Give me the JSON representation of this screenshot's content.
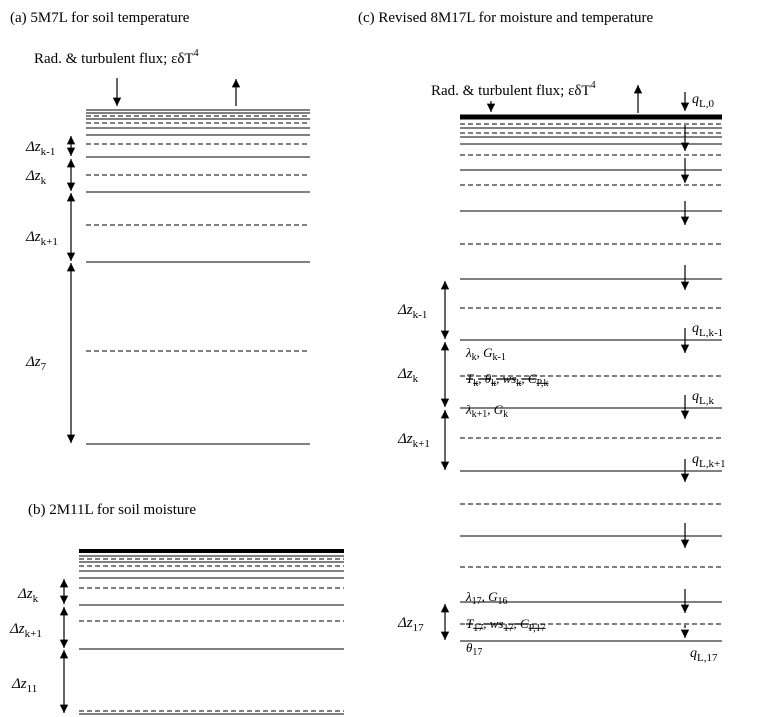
{
  "panels": {
    "a": {
      "title": "(a) 5M7L for soil temperature",
      "flux": "Rad. & turbulent flux; εδT",
      "flux_sup": "4"
    },
    "b": {
      "title": "(b) 2M11L for soil moisture"
    },
    "c": {
      "title": "(c) Revised 8M17L for moisture and temperature",
      "flux": "Rad. & turbulent flux; εδT",
      "flux_sup": "4"
    }
  },
  "dz_labels": {
    "a_k_minus_1": {
      "main": "Δz",
      "sub": "k-1"
    },
    "a_k": {
      "main": "Δz",
      "sub": "k"
    },
    "a_k_plus_1": {
      "main": "Δz",
      "sub": "k+1"
    },
    "a_7": {
      "main": "Δz",
      "sub": "7"
    },
    "b_k": {
      "main": "Δz",
      "sub": "k"
    },
    "b_k_plus_1": {
      "main": "Δz",
      "sub": "k+1"
    },
    "b_11": {
      "main": "Δz",
      "sub": "11"
    },
    "c_k_minus_1": {
      "main": "Δz",
      "sub": "k-1"
    },
    "c_k": {
      "main": "Δz",
      "sub": "k"
    },
    "c_k_plus_1": {
      "main": "Δz",
      "sub": "k+1"
    },
    "c_17": {
      "main": "Δz",
      "sub": "17"
    }
  },
  "q_labels": {
    "q0": {
      "main": "q",
      "sub": "L,0"
    },
    "qk_minus_1": {
      "main": "q",
      "sub": "L,k-1"
    },
    "qk": {
      "main": "q",
      "sub": "L,k"
    },
    "qk_plus_1": {
      "main": "q",
      "sub": "L,k+1"
    },
    "q17": {
      "main": "q",
      "sub": "L,17"
    }
  },
  "params": {
    "lambda_k": {
      "main": "λ",
      "sub": "k",
      "sep": ", ",
      "main2": "G",
      "sub2": "k-1"
    },
    "T_k": {
      "main": "T",
      "sub": "k",
      "sep": ", ",
      "main2": "θ",
      "sub2": "k",
      "sep2": ", ",
      "main3": "ws",
      "sub3": "k",
      "sep3": ", ",
      "main4": "C",
      "sub4": "P,k"
    },
    "lambda_k_plus_1": {
      "main": "λ",
      "sub": "k+1",
      "sep": ", ",
      "main2": "G",
      "sub2": "k"
    },
    "lambda_17": {
      "main": "λ",
      "sub": "17",
      "sep": ", ",
      "main2": "G",
      "sub2": "16"
    },
    "T_17": {
      "main": "T",
      "sub": "17",
      "sep": ", ",
      "main2": "ws",
      "sub2": "17",
      "sep2": ", ",
      "main3": "C",
      "sub3": "P,17"
    },
    "theta_17": {
      "main": "θ",
      "sub": "17"
    }
  }
}
